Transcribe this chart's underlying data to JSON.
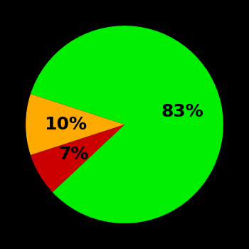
{
  "slices": [
    83,
    7,
    10
  ],
  "colors": [
    "#00ee00",
    "#cc0000",
    "#ffaa00"
  ],
  "labels": [
    "83%",
    "7%",
    "10%"
  ],
  "background_color": "#000000",
  "label_fontsize": 18,
  "label_fontweight": "bold",
  "startangle": 162,
  "figsize": [
    3.5,
    3.5
  ],
  "dpi": 100
}
